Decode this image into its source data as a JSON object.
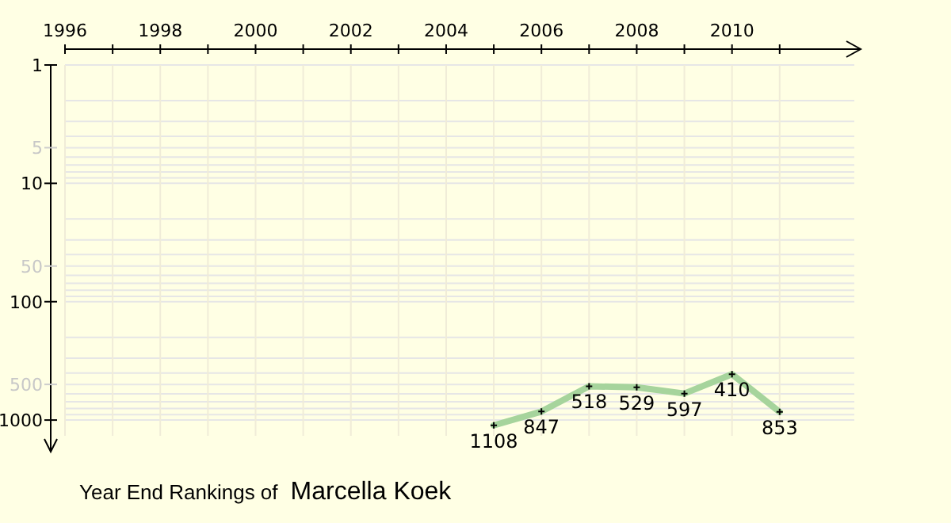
{
  "chart_data": {
    "type": "line",
    "title": "Year End Rankings of",
    "subtitle": "Marcella Koek",
    "x": [
      2005,
      2006,
      2007,
      2008,
      2009,
      2010,
      2011
    ],
    "series": [
      {
        "color": "#a6d49c",
        "values": [
          1108,
          847,
          518,
          529,
          597,
          410,
          853
        ]
      }
    ],
    "data_labels": true,
    "log": true,
    "grid": true,
    "marker": "cross",
    "line_style": "solid",
    "xlim": [
      1996,
      2012.7
    ],
    "ylim": [
      1850,
      1
    ],
    "xticks": [
      1996,
      {
        "value": 1997,
        "label": null
      },
      1998,
      {
        "value": 1999,
        "label": null
      },
      2000,
      {
        "value": 2001,
        "label": null
      },
      2002,
      {
        "value": 2003,
        "label": null
      },
      2004,
      {
        "value": 2005,
        "label": null
      },
      2006,
      {
        "value": 2007,
        "label": null
      },
      2008,
      {
        "value": 2009,
        "label": null
      },
      2010,
      {
        "value": 2011,
        "label": null
      }
    ],
    "yticks": [
      1,
      5,
      10,
      50,
      100,
      500,
      1000
    ]
  }
}
